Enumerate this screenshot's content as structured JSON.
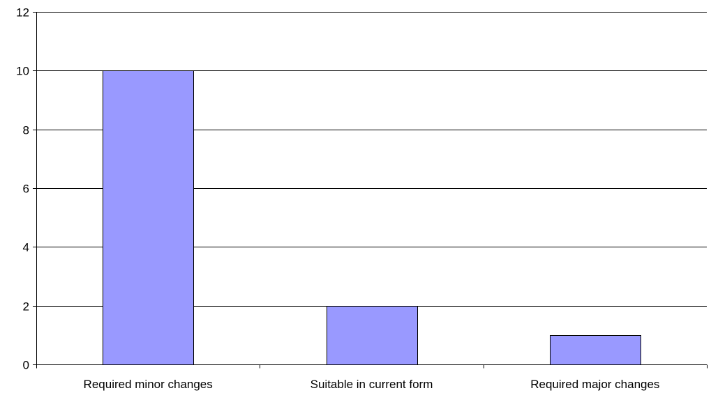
{
  "chart_data": {
    "type": "bar",
    "categories": [
      "Required minor changes",
      "Suitable in current form",
      "Required major changes"
    ],
    "values": [
      10,
      2,
      1
    ],
    "ylim": [
      0,
      12
    ],
    "yticks": [
      0,
      2,
      4,
      6,
      8,
      10,
      12
    ],
    "grid": true,
    "legend": "none",
    "colors": {
      "bar_fill": "#9999ff",
      "bar_stroke": "#000000",
      "grid": "#000000",
      "axis": "#000000",
      "background": "#ffffff"
    }
  }
}
